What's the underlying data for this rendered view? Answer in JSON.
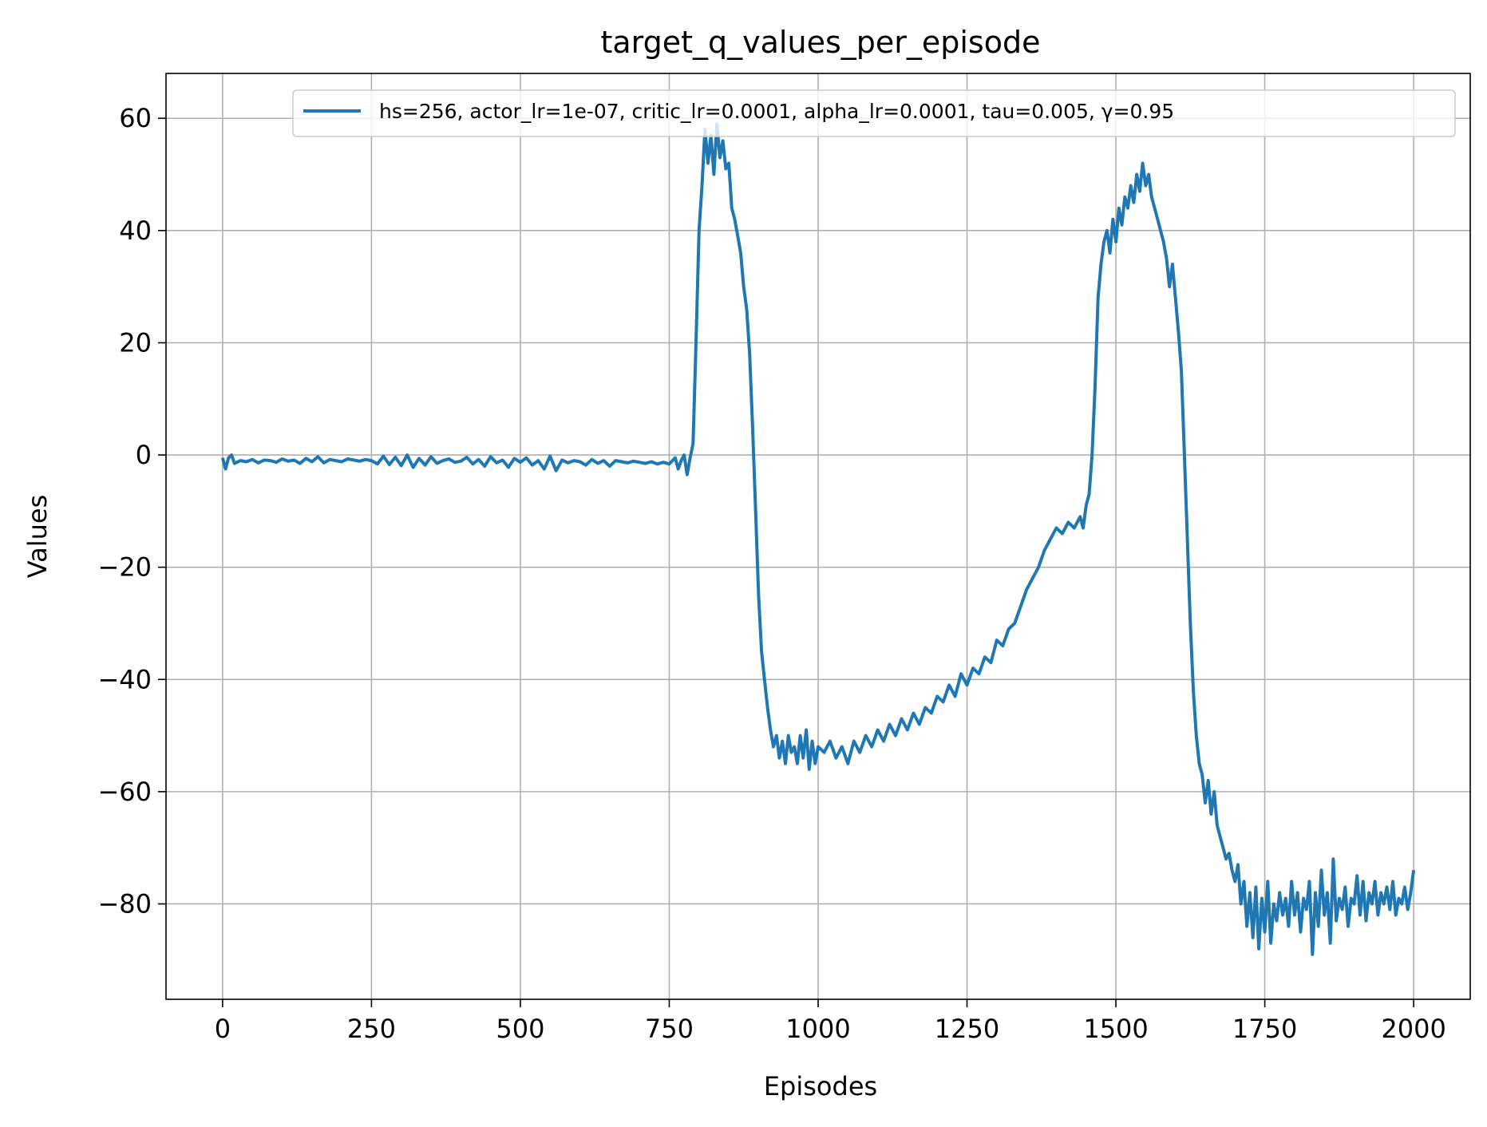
{
  "chart_data": {
    "type": "line",
    "title": "target_q_values_per_episode",
    "xlabel": "Episodes",
    "ylabel": "Values",
    "xlim": [
      -95,
      2095
    ],
    "ylim": [
      -97,
      68
    ],
    "x_ticks": [
      0,
      250,
      500,
      750,
      1000,
      1250,
      1500,
      1750,
      2000
    ],
    "x_tick_labels": [
      "0",
      "250",
      "500",
      "750",
      "1000",
      "1250",
      "1500",
      "1750",
      "2000"
    ],
    "y_ticks": [
      60,
      40,
      20,
      0,
      -20,
      -40,
      -60,
      -80
    ],
    "y_tick_labels": [
      "60",
      "40",
      "20",
      "0",
      "−20",
      "−40",
      "−60",
      "−80"
    ],
    "grid": true,
    "legend_position": "top-right",
    "series": [
      {
        "name": "hs=256, actor_lr=1e-07, critic_lr=0.0001, alpha_lr=0.0001, tau=0.005, γ=0.95",
        "color": "#1f77b4",
        "points": [
          [
            0,
            -0.5
          ],
          [
            5,
            -2.5
          ],
          [
            10,
            -0.5
          ],
          [
            15,
            0
          ],
          [
            20,
            -1.5
          ],
          [
            30,
            -1
          ],
          [
            40,
            -1.2
          ],
          [
            50,
            -0.8
          ],
          [
            60,
            -1.4
          ],
          [
            70,
            -0.9
          ],
          [
            80,
            -1
          ],
          [
            90,
            -1.3
          ],
          [
            100,
            -0.7
          ],
          [
            110,
            -1.1
          ],
          [
            120,
            -0.9
          ],
          [
            130,
            -1.5
          ],
          [
            140,
            -0.6
          ],
          [
            150,
            -1.2
          ],
          [
            160,
            -0.3
          ],
          [
            170,
            -1.4
          ],
          [
            180,
            -0.8
          ],
          [
            190,
            -1
          ],
          [
            200,
            -1.2
          ],
          [
            210,
            -0.7
          ],
          [
            220,
            -0.9
          ],
          [
            230,
            -1.1
          ],
          [
            240,
            -0.8
          ],
          [
            250,
            -1
          ],
          [
            260,
            -1.6
          ],
          [
            270,
            -0.2
          ],
          [
            280,
            -1.7
          ],
          [
            290,
            -0.4
          ],
          [
            300,
            -1.9
          ],
          [
            310,
            0
          ],
          [
            320,
            -2.2
          ],
          [
            330,
            -0.6
          ],
          [
            340,
            -1.8
          ],
          [
            350,
            -0.3
          ],
          [
            360,
            -1.5
          ],
          [
            370,
            -1
          ],
          [
            380,
            -0.7
          ],
          [
            390,
            -1.3
          ],
          [
            400,
            -1.1
          ],
          [
            410,
            -0.4
          ],
          [
            420,
            -1.6
          ],
          [
            430,
            -0.8
          ],
          [
            440,
            -2
          ],
          [
            450,
            -0.3
          ],
          [
            460,
            -1.4
          ],
          [
            470,
            -0.9
          ],
          [
            480,
            -2.2
          ],
          [
            490,
            -0.6
          ],
          [
            500,
            -1.3
          ],
          [
            510,
            -0.5
          ],
          [
            520,
            -1.8
          ],
          [
            530,
            -1
          ],
          [
            540,
            -2.5
          ],
          [
            550,
            -0.2
          ],
          [
            560,
            -2.8
          ],
          [
            570,
            -0.9
          ],
          [
            580,
            -1.4
          ],
          [
            590,
            -1
          ],
          [
            600,
            -1.2
          ],
          [
            610,
            -1.8
          ],
          [
            620,
            -0.8
          ],
          [
            630,
            -1.5
          ],
          [
            640,
            -1
          ],
          [
            650,
            -2
          ],
          [
            660,
            -1
          ],
          [
            670,
            -1.2
          ],
          [
            680,
            -1.4
          ],
          [
            690,
            -1.1
          ],
          [
            700,
            -1.3
          ],
          [
            710,
            -1.5
          ],
          [
            720,
            -1.2
          ],
          [
            730,
            -1.6
          ],
          [
            740,
            -1.3
          ],
          [
            750,
            -1.6
          ],
          [
            760,
            -0.5
          ],
          [
            765,
            -2.5
          ],
          [
            770,
            -1
          ],
          [
            775,
            0
          ],
          [
            780,
            -3.5
          ],
          [
            785,
            -0.5
          ],
          [
            790,
            2
          ],
          [
            795,
            20
          ],
          [
            800,
            40
          ],
          [
            805,
            48
          ],
          [
            810,
            58
          ],
          [
            815,
            52
          ],
          [
            820,
            57
          ],
          [
            825,
            50
          ],
          [
            830,
            59
          ],
          [
            835,
            53
          ],
          [
            840,
            56
          ],
          [
            845,
            51
          ],
          [
            850,
            52
          ],
          [
            855,
            44
          ],
          [
            860,
            42
          ],
          [
            865,
            39
          ],
          [
            870,
            36
          ],
          [
            875,
            30
          ],
          [
            880,
            26
          ],
          [
            885,
            18
          ],
          [
            890,
            5
          ],
          [
            895,
            -10
          ],
          [
            900,
            -25
          ],
          [
            905,
            -35
          ],
          [
            910,
            -40
          ],
          [
            915,
            -45
          ],
          [
            920,
            -49
          ],
          [
            925,
            -52
          ],
          [
            930,
            -50
          ],
          [
            935,
            -54
          ],
          [
            940,
            -51
          ],
          [
            945,
            -55
          ],
          [
            950,
            -50
          ],
          [
            955,
            -53
          ],
          [
            960,
            -52
          ],
          [
            965,
            -55
          ],
          [
            970,
            -50
          ],
          [
            975,
            -54
          ],
          [
            980,
            -49
          ],
          [
            985,
            -56
          ],
          [
            990,
            -51
          ],
          [
            995,
            -55
          ],
          [
            1000,
            -52
          ],
          [
            1010,
            -53
          ],
          [
            1020,
            -51
          ],
          [
            1030,
            -54
          ],
          [
            1040,
            -52
          ],
          [
            1050,
            -55
          ],
          [
            1060,
            -51
          ],
          [
            1070,
            -53
          ],
          [
            1080,
            -50
          ],
          [
            1090,
            -52
          ],
          [
            1100,
            -49
          ],
          [
            1110,
            -51
          ],
          [
            1120,
            -48
          ],
          [
            1130,
            -50
          ],
          [
            1140,
            -47
          ],
          [
            1150,
            -49
          ],
          [
            1160,
            -46
          ],
          [
            1170,
            -48
          ],
          [
            1180,
            -45
          ],
          [
            1190,
            -46
          ],
          [
            1200,
            -43
          ],
          [
            1210,
            -44
          ],
          [
            1220,
            -41
          ],
          [
            1230,
            -43
          ],
          [
            1240,
            -39
          ],
          [
            1250,
            -41
          ],
          [
            1260,
            -38
          ],
          [
            1270,
            -39
          ],
          [
            1280,
            -36
          ],
          [
            1290,
            -37
          ],
          [
            1300,
            -33
          ],
          [
            1310,
            -34
          ],
          [
            1320,
            -31
          ],
          [
            1330,
            -30
          ],
          [
            1340,
            -27
          ],
          [
            1350,
            -24
          ],
          [
            1360,
            -22
          ],
          [
            1370,
            -20
          ],
          [
            1380,
            -17
          ],
          [
            1390,
            -15
          ],
          [
            1400,
            -13
          ],
          [
            1410,
            -14
          ],
          [
            1420,
            -12
          ],
          [
            1430,
            -13
          ],
          [
            1440,
            -11
          ],
          [
            1445,
            -13
          ],
          [
            1450,
            -9
          ],
          [
            1455,
            -7
          ],
          [
            1460,
            0
          ],
          [
            1465,
            12
          ],
          [
            1470,
            28
          ],
          [
            1475,
            34
          ],
          [
            1480,
            38
          ],
          [
            1485,
            40
          ],
          [
            1490,
            36
          ],
          [
            1495,
            42
          ],
          [
            1500,
            38
          ],
          [
            1505,
            44
          ],
          [
            1510,
            41
          ],
          [
            1515,
            46
          ],
          [
            1520,
            44
          ],
          [
            1525,
            48
          ],
          [
            1530,
            45
          ],
          [
            1535,
            50
          ],
          [
            1540,
            47
          ],
          [
            1545,
            52
          ],
          [
            1550,
            48
          ],
          [
            1555,
            50
          ],
          [
            1560,
            46
          ],
          [
            1565,
            44
          ],
          [
            1570,
            42
          ],
          [
            1575,
            40
          ],
          [
            1580,
            38
          ],
          [
            1585,
            35
          ],
          [
            1590,
            30
          ],
          [
            1595,
            34
          ],
          [
            1600,
            28
          ],
          [
            1605,
            22
          ],
          [
            1610,
            15
          ],
          [
            1615,
            0
          ],
          [
            1620,
            -15
          ],
          [
            1625,
            -30
          ],
          [
            1630,
            -42
          ],
          [
            1635,
            -50
          ],
          [
            1640,
            -55
          ],
          [
            1645,
            -57
          ],
          [
            1650,
            -62
          ],
          [
            1655,
            -58
          ],
          [
            1660,
            -64
          ],
          [
            1665,
            -60
          ],
          [
            1670,
            -66
          ],
          [
            1675,
            -68
          ],
          [
            1680,
            -70
          ],
          [
            1685,
            -72
          ],
          [
            1690,
            -71
          ],
          [
            1695,
            -74
          ],
          [
            1700,
            -76
          ],
          [
            1705,
            -73
          ],
          [
            1710,
            -80
          ],
          [
            1715,
            -76
          ],
          [
            1720,
            -84
          ],
          [
            1725,
            -78
          ],
          [
            1730,
            -86
          ],
          [
            1735,
            -77
          ],
          [
            1740,
            -88
          ],
          [
            1745,
            -79
          ],
          [
            1750,
            -85
          ],
          [
            1755,
            -76
          ],
          [
            1760,
            -87
          ],
          [
            1765,
            -80
          ],
          [
            1770,
            -83
          ],
          [
            1775,
            -78
          ],
          [
            1780,
            -82
          ],
          [
            1785,
            -79
          ],
          [
            1790,
            -84
          ],
          [
            1795,
            -76
          ],
          [
            1800,
            -82
          ],
          [
            1805,
            -78
          ],
          [
            1810,
            -85
          ],
          [
            1815,
            -79
          ],
          [
            1820,
            -81
          ],
          [
            1825,
            -76
          ],
          [
            1830,
            -89
          ],
          [
            1835,
            -78
          ],
          [
            1840,
            -84
          ],
          [
            1845,
            -74
          ],
          [
            1850,
            -82
          ],
          [
            1855,
            -78
          ],
          [
            1860,
            -87
          ],
          [
            1865,
            -72
          ],
          [
            1870,
            -83
          ],
          [
            1875,
            -79
          ],
          [
            1880,
            -81
          ],
          [
            1885,
            -77
          ],
          [
            1890,
            -84
          ],
          [
            1895,
            -79
          ],
          [
            1900,
            -80
          ],
          [
            1905,
            -75
          ],
          [
            1910,
            -82
          ],
          [
            1915,
            -76
          ],
          [
            1920,
            -83
          ],
          [
            1925,
            -78
          ],
          [
            1930,
            -80
          ],
          [
            1935,
            -76
          ],
          [
            1940,
            -82
          ],
          [
            1945,
            -78
          ],
          [
            1950,
            -80
          ],
          [
            1955,
            -77
          ],
          [
            1960,
            -81
          ],
          [
            1965,
            -76
          ],
          [
            1970,
            -82
          ],
          [
            1975,
            -79
          ],
          [
            1980,
            -80
          ],
          [
            1985,
            -77
          ],
          [
            1990,
            -81
          ],
          [
            1995,
            -78
          ],
          [
            2000,
            -74
          ]
        ]
      }
    ]
  }
}
